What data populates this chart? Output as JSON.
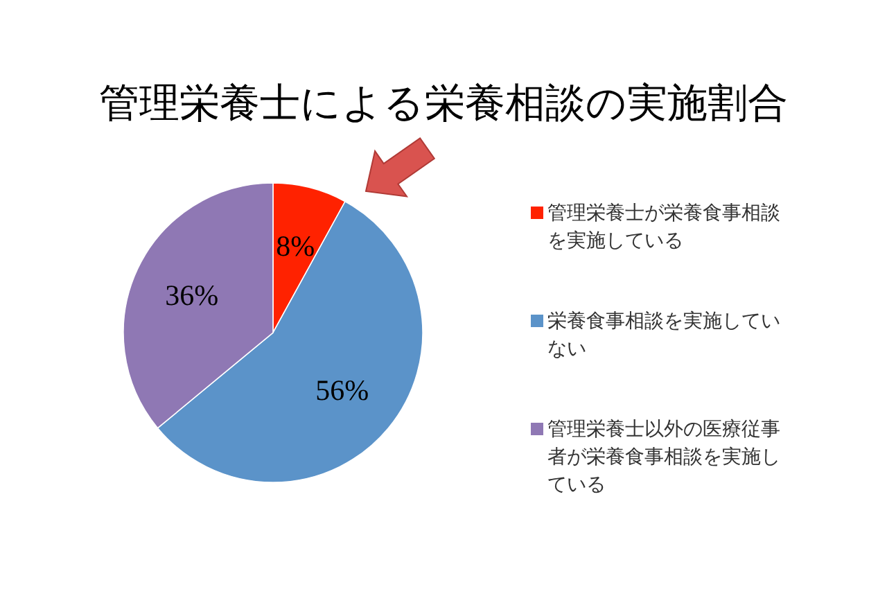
{
  "chart_data": {
    "type": "pie",
    "title": "管理栄養士による栄養相談の実施割合",
    "categories": [
      "管理栄養士が栄養食事相談を実施している",
      "栄養食事相談を実施していない",
      "管理栄養士以外の医療従事者が栄養食事相談を実施している"
    ],
    "values": [
      8,
      56,
      36
    ],
    "colors": [
      "#ff2200",
      "#5b93c9",
      "#8f78b4"
    ],
    "value_labels": [
      "8%",
      "56%",
      "36%"
    ],
    "legend": "right"
  }
}
